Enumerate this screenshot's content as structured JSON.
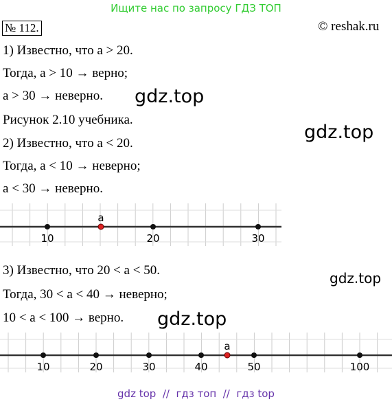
{
  "header": {
    "banner": "Ищите нас по запросу ГДЗ ТОП",
    "number": "№ 112.",
    "site": "© reshak.ru"
  },
  "lines": [
    "1) Известно, что a > 20.",
    "Тогда, a > 10 → верно;",
    "a > 30 → неверно.",
    "Рисунок 2.10 учебника.",
    "2) Известно, что a < 20.",
    "Тогда, a < 10 → неверно;",
    "a < 30 → неверно."
  ],
  "number_line_1": {
    "labels": [
      "10",
      "20",
      "30"
    ],
    "point": "a"
  },
  "lines_2": [
    "3) Известно, что 20 < a < 50.",
    "Тогда, 30 < a < 40 → неверно;",
    "10 < a < 100 → верно."
  ],
  "number_line_2": {
    "labels": [
      "10",
      "20",
      "30",
      "40",
      "50",
      "100"
    ],
    "point": "a"
  },
  "watermarks": [
    "gdz.top",
    "gdz.top",
    "gdz.top",
    "gdz.top"
  ],
  "footer": "gdz top  //  гдз топ  //  гдз top"
}
